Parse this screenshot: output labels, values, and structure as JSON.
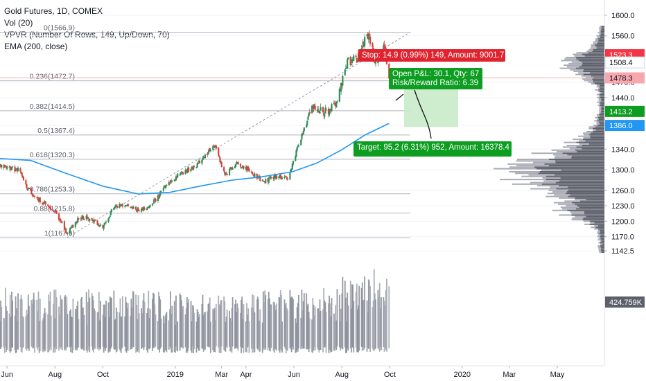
{
  "legend": {
    "symbol": "Gold Futures, 1D, COMEX",
    "vol": "Vol (20)",
    "vpvr": "VPVR (Number Of Rows, 149, Up/Down, 70)",
    "ema": "EMA (200, close)"
  },
  "colors": {
    "up": "#26a69a",
    "down": "#ef5350",
    "candle_up": "#2f8f58",
    "candle_down": "#d9413a",
    "ema": "#2196f3",
    "fib": "#b2b5be",
    "volume": "#9598a1",
    "volume_profile": "#5d606b",
    "stop_label": "#e0232e",
    "target_label": "#0d9d21",
    "target_zone": "#c8ebc9",
    "last_price": "#f23645",
    "axis_text": "#131722"
  },
  "price_axis": {
    "ticks": [
      "1600.0",
      "1560.0",
      "1470.0",
      "1440.0",
      "1386.0",
      "1340.0",
      "1300.0",
      "1260.0",
      "1230.0",
      "1200.0",
      "1170.0",
      "1142.5"
    ],
    "badges": [
      {
        "text": "1523.3",
        "kind": "red"
      },
      {
        "text": "1508.4",
        "kind": "white"
      },
      {
        "text": "1478.3",
        "kind": "pink"
      },
      {
        "text": "1413.2",
        "kind": "green"
      },
      {
        "text": "1386.0",
        "kind": "blue"
      },
      {
        "text": "424.759K",
        "kind": "gray"
      }
    ]
  },
  "time_axis": {
    "ticks": [
      "Jun",
      "Aug",
      "Oct",
      "2019",
      "Mar",
      "Apr",
      "Jun",
      "Aug",
      "Oct",
      "2020",
      "Mar",
      "May"
    ]
  },
  "annotations": {
    "stop": "Stop: 14.9 (0.99%) 149, Amount: 9001.7",
    "open_pnl": "Open P&L: 30.1, Qty: 67",
    "risk_reward": "Risk/Reward Ratio: 6.39",
    "target": "Target: 95.2 (6.31%) 952, Amount: 16378.4"
  },
  "chart_data": {
    "type": "candlestick",
    "title": "Gold Futures, 1D, COMEX",
    "indicators": [
      "Vol (20)",
      "VPVR (Number Of Rows, 149, Up/Down, 70)",
      "EMA (200, close)"
    ],
    "fib_levels": [
      {
        "label": "0(1566.9)",
        "ratio": 0,
        "price": 1566.9
      },
      {
        "label": "0.236(1472.7)",
        "ratio": 0.236,
        "price": 1472.7
      },
      {
        "label": "0.382(1414.5)",
        "ratio": 0.382,
        "price": 1414.5
      },
      {
        "label": "0.5(1367.4)",
        "ratio": 0.5,
        "price": 1367.4
      },
      {
        "label": "0.618(1320.3)",
        "ratio": 0.618,
        "price": 1320.3
      },
      {
        "label": "0.786(1253.3)",
        "ratio": 0.786,
        "price": 1253.3
      },
      {
        "label": "0.88(1215.8)",
        "ratio": 0.88,
        "price": 1215.8
      },
      {
        "label": "1(1167.9)",
        "ratio": 1,
        "price": 1167.9
      }
    ],
    "price_path": [
      [
        "2018-05-10",
        1322
      ],
      [
        "2018-05-25",
        1305
      ],
      [
        "2018-06-15",
        1300
      ],
      [
        "2018-07-01",
        1255
      ],
      [
        "2018-07-20",
        1233
      ],
      [
        "2018-08-01",
        1222
      ],
      [
        "2018-08-16",
        1178
      ],
      [
        "2018-09-01",
        1207
      ],
      [
        "2018-09-15",
        1205
      ],
      [
        "2018-10-01",
        1190
      ],
      [
        "2018-10-15",
        1228
      ],
      [
        "2018-11-01",
        1235
      ],
      [
        "2018-11-15",
        1220
      ],
      [
        "2018-12-01",
        1230
      ],
      [
        "2018-12-20",
        1268
      ],
      [
        "2019-01-05",
        1290
      ],
      [
        "2019-01-25",
        1305
      ],
      [
        "2019-02-20",
        1348
      ],
      [
        "2019-03-05",
        1290
      ],
      [
        "2019-03-20",
        1315
      ],
      [
        "2019-04-05",
        1300
      ],
      [
        "2019-04-23",
        1277
      ],
      [
        "2019-05-10",
        1287
      ],
      [
        "2019-05-25",
        1285
      ],
      [
        "2019-06-05",
        1340
      ],
      [
        "2019-06-25",
        1425
      ],
      [
        "2019-07-10",
        1410
      ],
      [
        "2019-07-25",
        1425
      ],
      [
        "2019-08-08",
        1510
      ],
      [
        "2019-08-20",
        1515
      ],
      [
        "2019-09-04",
        1566
      ],
      [
        "2019-09-12",
        1510
      ],
      [
        "2019-09-24",
        1540
      ],
      [
        "2019-09-30",
        1480
      ]
    ],
    "ema200": [
      [
        "2018-05-10",
        1323
      ],
      [
        "2018-07-01",
        1318
      ],
      [
        "2018-08-15",
        1293
      ],
      [
        "2018-10-01",
        1268
      ],
      [
        "2018-11-15",
        1253
      ],
      [
        "2018-12-25",
        1256
      ],
      [
        "2019-02-01",
        1268
      ],
      [
        "2019-03-15",
        1280
      ],
      [
        "2019-04-20",
        1286
      ],
      [
        "2019-05-30",
        1296
      ],
      [
        "2019-06-30",
        1313
      ],
      [
        "2019-07-31",
        1338
      ],
      [
        "2019-08-31",
        1368
      ],
      [
        "2019-09-30",
        1390
      ]
    ],
    "position": {
      "entry": 1478.3,
      "stop": 1493.2,
      "target": 1383.1,
      "current": 1508.4,
      "stop_text": "Stop: 14.9 (0.99%) 149, Amount: 9001.7",
      "pnl_text": "Open P&L: 30.1, Qty: 67",
      "rr_text": "Risk/Reward Ratio: 6.39",
      "target_text": "Target: 95.2 (6.31%) 952, Amount: 16378.4"
    },
    "volume_last": "424.759K",
    "price_levels_marked": [
      1523.3,
      1508.4,
      1478.3,
      1413.2,
      1386.0
    ],
    "ylim": [
      1130,
      1620
    ],
    "xlim": [
      "2018-05-01",
      "2020-06-15"
    ]
  }
}
